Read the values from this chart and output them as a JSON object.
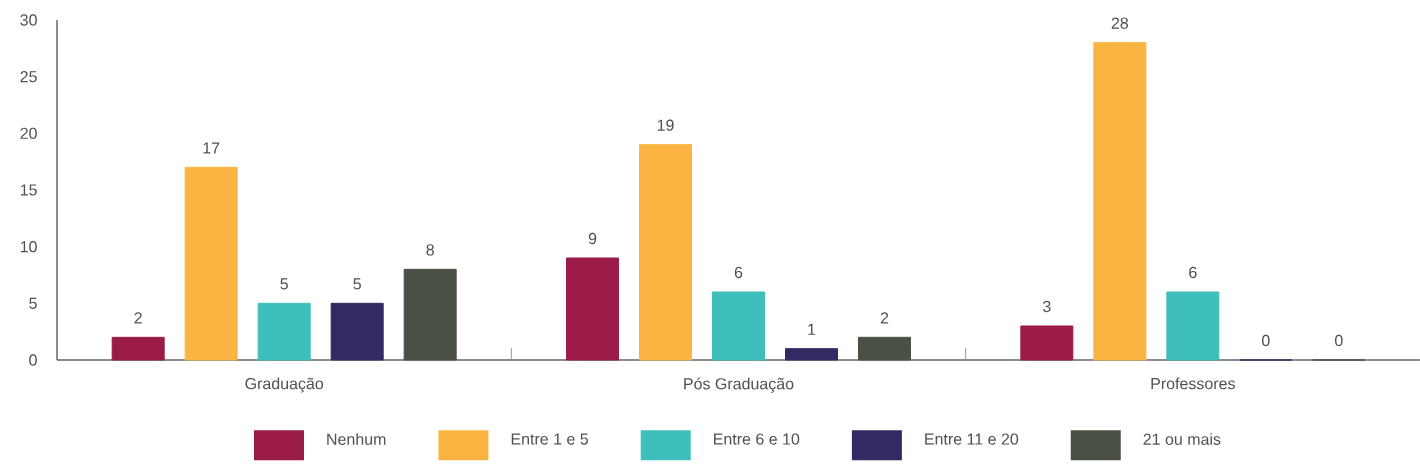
{
  "chart_data": {
    "type": "bar",
    "categories": [
      "Graduação",
      "Pós Graduação",
      "Professores"
    ],
    "series": [
      {
        "name": "Nenhum",
        "color": "#9b1b48",
        "values": [
          2,
          9,
          3
        ]
      },
      {
        "name": "Entre 1 e 5",
        "color": "#fbb442",
        "values": [
          17,
          19,
          28
        ]
      },
      {
        "name": "Entre 6 e 10",
        "color": "#3fbfbb",
        "values": [
          5,
          6,
          6
        ]
      },
      {
        "name": "Entre 11 e 20",
        "color": "#352964",
        "values": [
          5,
          1,
          0
        ]
      },
      {
        "name": "21 ou mais",
        "color": "#4b5046",
        "values": [
          8,
          2,
          0
        ]
      }
    ],
    "ylim": [
      0,
      30
    ],
    "yticks": [
      0,
      5,
      10,
      15,
      20,
      25,
      30
    ],
    "data_labels": true,
    "legend": "bottom",
    "grid": false
  }
}
